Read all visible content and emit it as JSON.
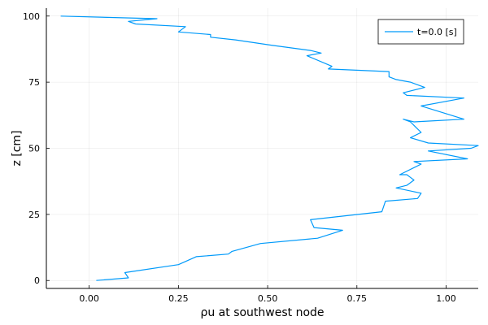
{
  "chart_data": {
    "type": "line",
    "xlabel": "ρu at southwest node",
    "ylabel": "z [cm]",
    "xlim": [
      -0.12,
      1.09
    ],
    "ylim": [
      -3,
      103
    ],
    "x_ticks": [
      0,
      0.25,
      0.5,
      0.75,
      1.0
    ],
    "x_tick_labels": [
      "0.00",
      "0.25",
      "0.50",
      "0.75",
      "1.00"
    ],
    "y_ticks": [
      0,
      25,
      50,
      75,
      100
    ],
    "y_tick_labels": [
      "0",
      "25",
      "50",
      "75",
      "100"
    ],
    "grid": true,
    "legend_position": "top-right",
    "series": [
      {
        "name": "t=0.0 [s]",
        "color": "#009AFA",
        "x": [
          0.02,
          0.11,
          0.1,
          0.25,
          0.3,
          0.39,
          0.4,
          0.48,
          0.64,
          0.71,
          0.63,
          0.62,
          0.82,
          0.83,
          0.92,
          0.93,
          0.86,
          0.89,
          0.91,
          0.9,
          0.89,
          0.87,
          0.93,
          0.91,
          1.06,
          0.95,
          1.07,
          1.09,
          0.95,
          0.9,
          0.93,
          0.9,
          0.88,
          0.91,
          0.91,
          1.05,
          0.93,
          1.05,
          0.89,
          0.88,
          0.94,
          0.9,
          0.86,
          0.84,
          0.84,
          0.67,
          0.68,
          0.61,
          0.65,
          0.62,
          0.51,
          0.41,
          0.34,
          0.34,
          0.25,
          0.27,
          0.13,
          0.11,
          0.19,
          -0.08
        ],
        "y": [
          0,
          1,
          3,
          6,
          9,
          10,
          11,
          14,
          16,
          19,
          20,
          23,
          26,
          30,
          31,
          33,
          35,
          36,
          38,
          39,
          40,
          40,
          44,
          45,
          46,
          49,
          50,
          51,
          52,
          54,
          56,
          60,
          61,
          60,
          60,
          61,
          66,
          69,
          70,
          71,
          73,
          75,
          76,
          77,
          79,
          80,
          81,
          85,
          86,
          87,
          89,
          91,
          92,
          93,
          94,
          96,
          97,
          98,
          99,
          100
        ]
      }
    ]
  }
}
